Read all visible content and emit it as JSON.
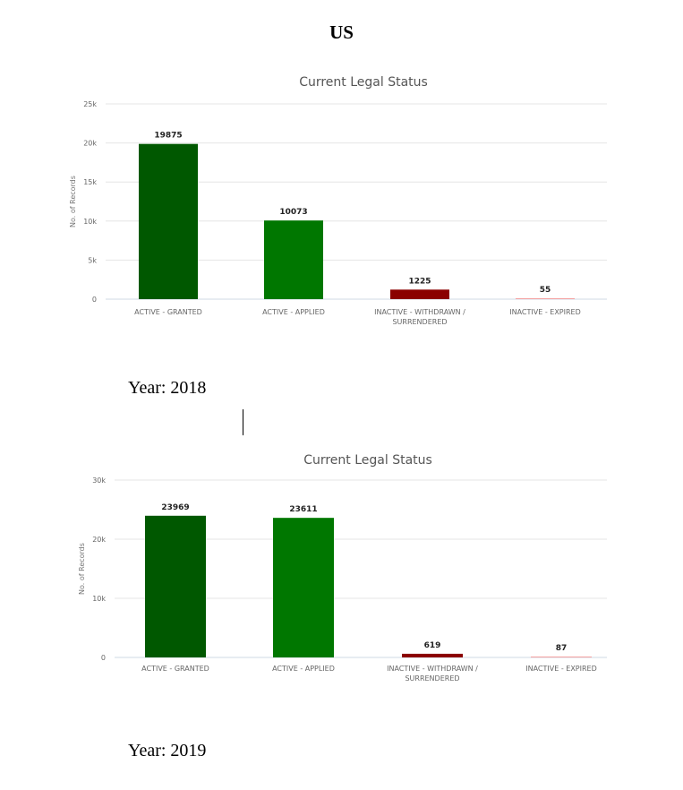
{
  "page_title": "US",
  "cursor": "I-beam text cursor",
  "chart_data": [
    {
      "type": "bar",
      "title": "Current Legal Status",
      "ylabel": "No. of Records",
      "xlabel": "",
      "year_label": "Year: 2018",
      "ylim": [
        0,
        25000
      ],
      "yticks": [
        0,
        5000,
        10000,
        15000,
        20000,
        25000
      ],
      "ytick_labels": [
        "0",
        "5k",
        "10k",
        "15k",
        "20k",
        "25k"
      ],
      "grid": true,
      "categories": [
        [
          "ACTIVE - GRANTED"
        ],
        [
          "ACTIVE - APPLIED"
        ],
        [
          "INACTIVE - WITHDRAWN /",
          "SURRENDERED"
        ],
        [
          "INACTIVE - EXPIRED"
        ]
      ],
      "values": [
        19875,
        10073,
        1225,
        55
      ],
      "colors": [
        "#005800",
        "#007700",
        "#8b0000",
        "#f4a0a0"
      ]
    },
    {
      "type": "bar",
      "title": "Current Legal Status",
      "ylabel": "No. of Records",
      "xlabel": "",
      "year_label": "Year: 2019",
      "ylim": [
        0,
        30000
      ],
      "yticks": [
        0,
        10000,
        20000,
        30000
      ],
      "ytick_labels": [
        "0",
        "10k",
        "20k",
        "30k"
      ],
      "grid": true,
      "categories": [
        [
          "ACTIVE - GRANTED"
        ],
        [
          "ACTIVE - APPLIED"
        ],
        [
          "INACTIVE - WITHDRAWN /",
          "SURRENDERED"
        ],
        [
          "INACTIVE - EXPIRED"
        ]
      ],
      "values": [
        23969,
        23611,
        619,
        87
      ],
      "colors": [
        "#005800",
        "#007700",
        "#8b0000",
        "#f4a0a0"
      ]
    }
  ]
}
